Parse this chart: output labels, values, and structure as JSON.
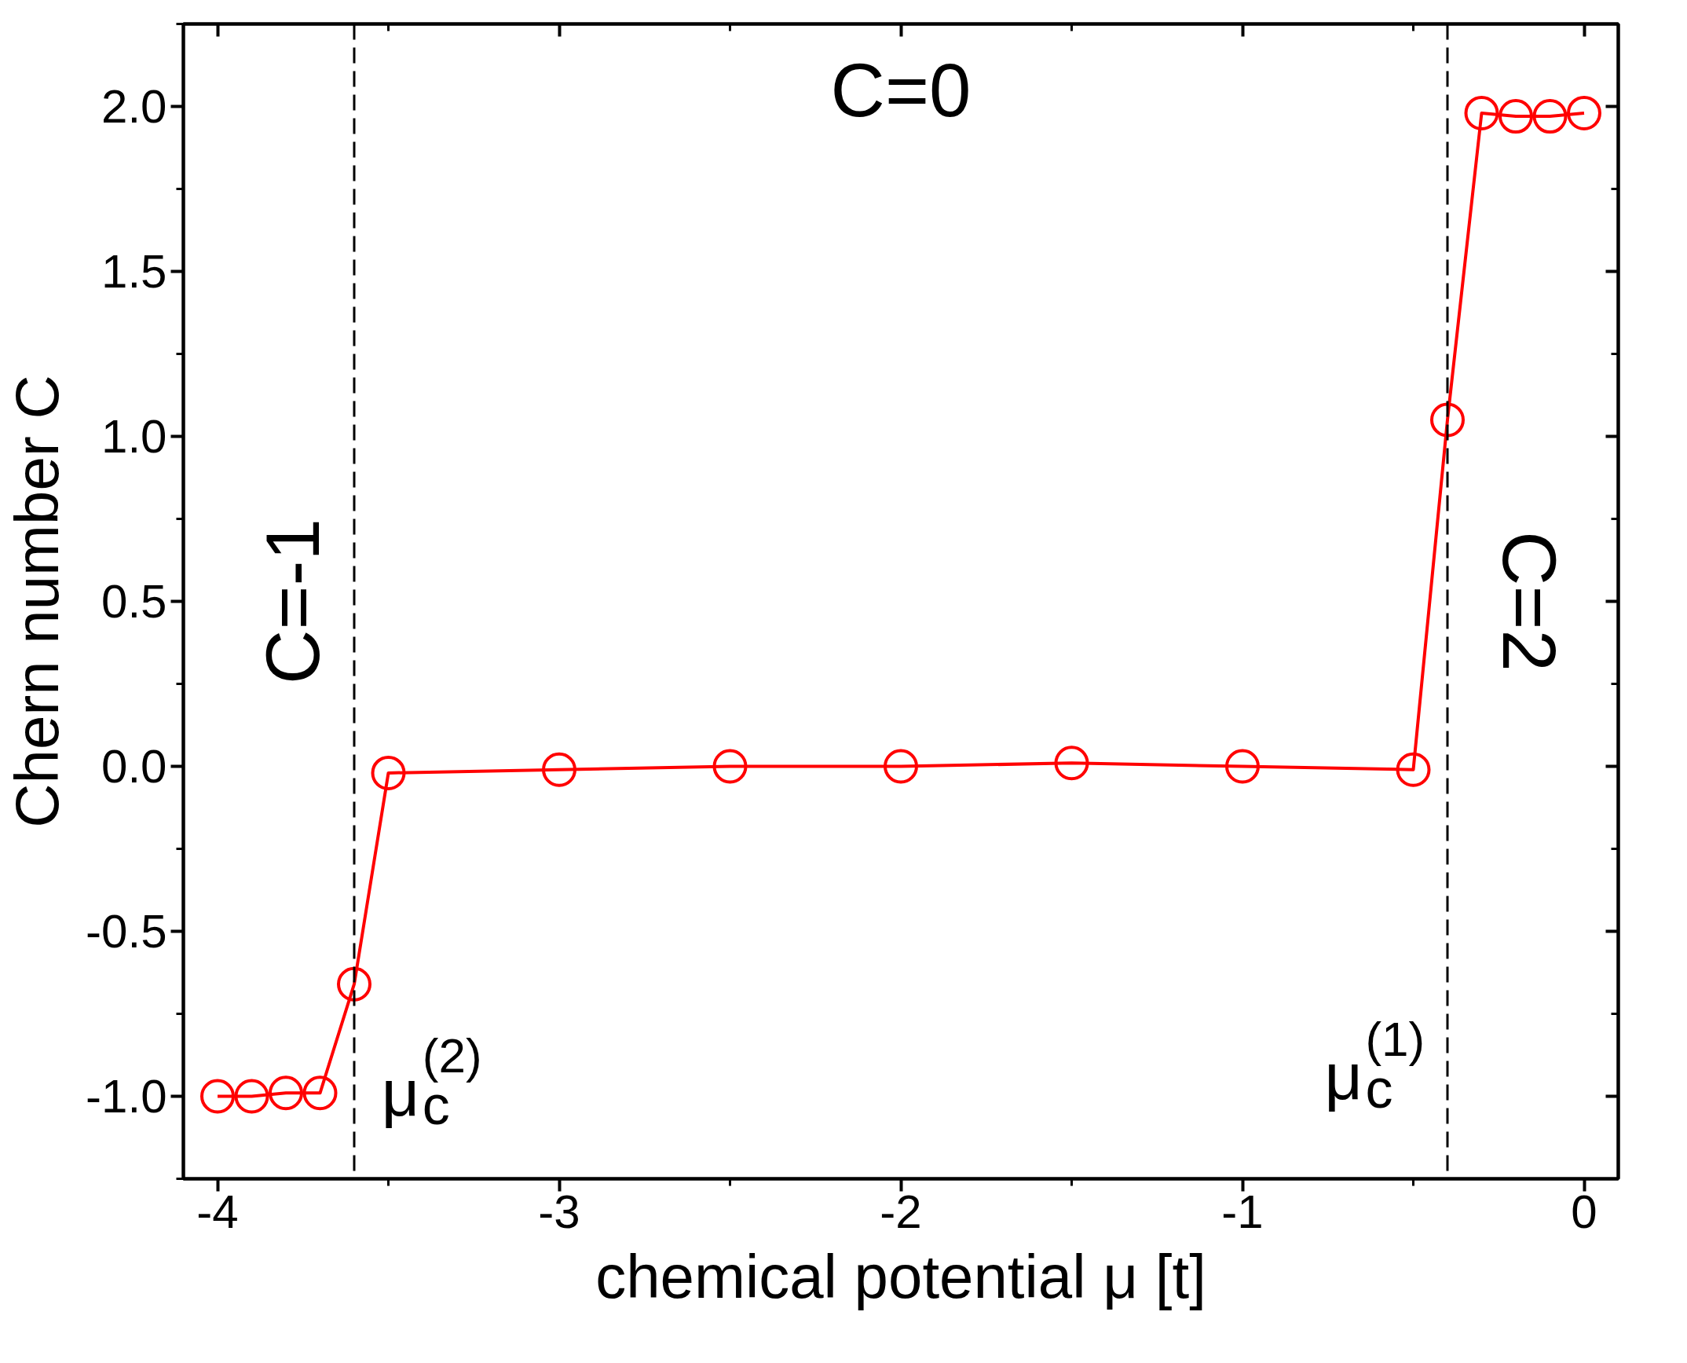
{
  "chart_data": {
    "type": "line",
    "xlabel": "chemical potential μ [t]",
    "ylabel": "Chern number C",
    "x": [
      -4,
      -3.9,
      -3.8,
      -3.7,
      -3.6,
      -3.5,
      -3,
      -2.5,
      -2,
      -1.5,
      -1,
      -0.5,
      -0.4,
      -0.3,
      -0.2,
      -0.1,
      0
    ],
    "series": [
      {
        "color": "#ff0000",
        "values": [
          -1.0,
          -1.0,
          -0.99,
          -0.99,
          -0.66,
          -0.02,
          -0.01,
          0.0,
          0.0,
          0.01,
          0.0,
          -0.01,
          1.05,
          1.98,
          1.97,
          1.97,
          1.98
        ]
      }
    ],
    "marker": "circle",
    "line_style": "solid",
    "xlim": [
      -4.1,
      0.1
    ],
    "xticks": [
      -4,
      -3,
      -2,
      -1,
      0
    ],
    "ylim": [
      -1.25,
      2.25
    ],
    "yticks": [
      {
        "value": -1.0,
        "label": "-1.0"
      },
      {
        "value": -0.5,
        "label": "-0.5"
      },
      {
        "value": 0.0,
        "label": "0.0"
      },
      {
        "value": 0.5,
        "label": "0.5"
      },
      {
        "value": 1.0,
        "label": "1.0"
      },
      {
        "value": 1.5,
        "label": "1.5"
      },
      {
        "value": 2.0,
        "label": "2.0"
      }
    ],
    "ref_lines": [
      {
        "axis": "x",
        "value": -3.6,
        "label": "μ$_{c}$$^{(2)}$",
        "color": "#000000",
        "line_style": "dashed"
      },
      {
        "axis": "x",
        "value": -0.4,
        "label": "μ$_{c}$$^{(1)}$",
        "color": "#000000",
        "line_style": "dashed"
      }
    ],
    "annotations": [
      "C=0",
      "C=-1",
      "C=2"
    ]
  }
}
